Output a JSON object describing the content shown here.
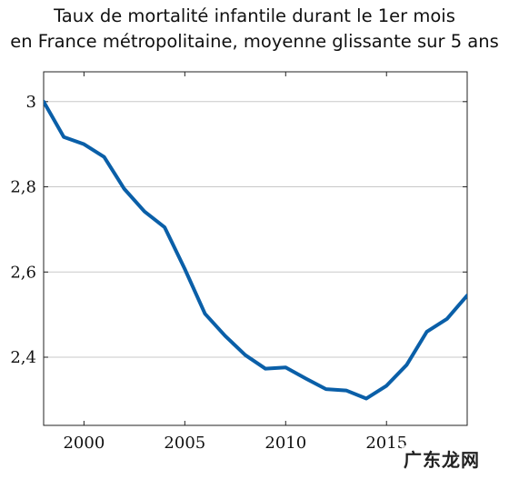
{
  "chart_data": {
    "type": "line",
    "title_lines": [
      "Taux de mortalité infantile durant le 1er mois",
      "en France métropolitaine, moyenne glissante sur 5 ans"
    ],
    "xlabel": "",
    "ylabel": "",
    "xlim": [
      1998,
      2019
    ],
    "ylim": [
      2.24,
      3.07
    ],
    "x_ticks": [
      2000,
      2005,
      2010,
      2015
    ],
    "x_tick_labels": [
      "2000",
      "2005",
      "2010",
      "2015"
    ],
    "y_ticks": [
      2.4,
      2.6,
      2.8,
      3.0
    ],
    "y_tick_labels": [
      "2,4",
      "2,6",
      "2,8",
      "3"
    ],
    "grid": "horizontal",
    "line_color": "#0a5fa8",
    "series": [
      {
        "x": [
          1998,
          1999,
          2000,
          2001,
          2002,
          2003,
          2004,
          2005,
          2006,
          2007,
          2008,
          2009,
          2010,
          2011,
          2012,
          2013,
          2014,
          2015,
          2016,
          2017,
          2018,
          2019
        ],
        "values": [
          3.0,
          2.917,
          2.9,
          2.87,
          2.795,
          2.742,
          2.705,
          2.607,
          2.502,
          2.45,
          2.405,
          2.373,
          2.376,
          2.35,
          2.325,
          2.322,
          2.303,
          2.333,
          2.382,
          2.46,
          2.49,
          2.545
        ]
      }
    ]
  },
  "watermark": "广东龙网"
}
